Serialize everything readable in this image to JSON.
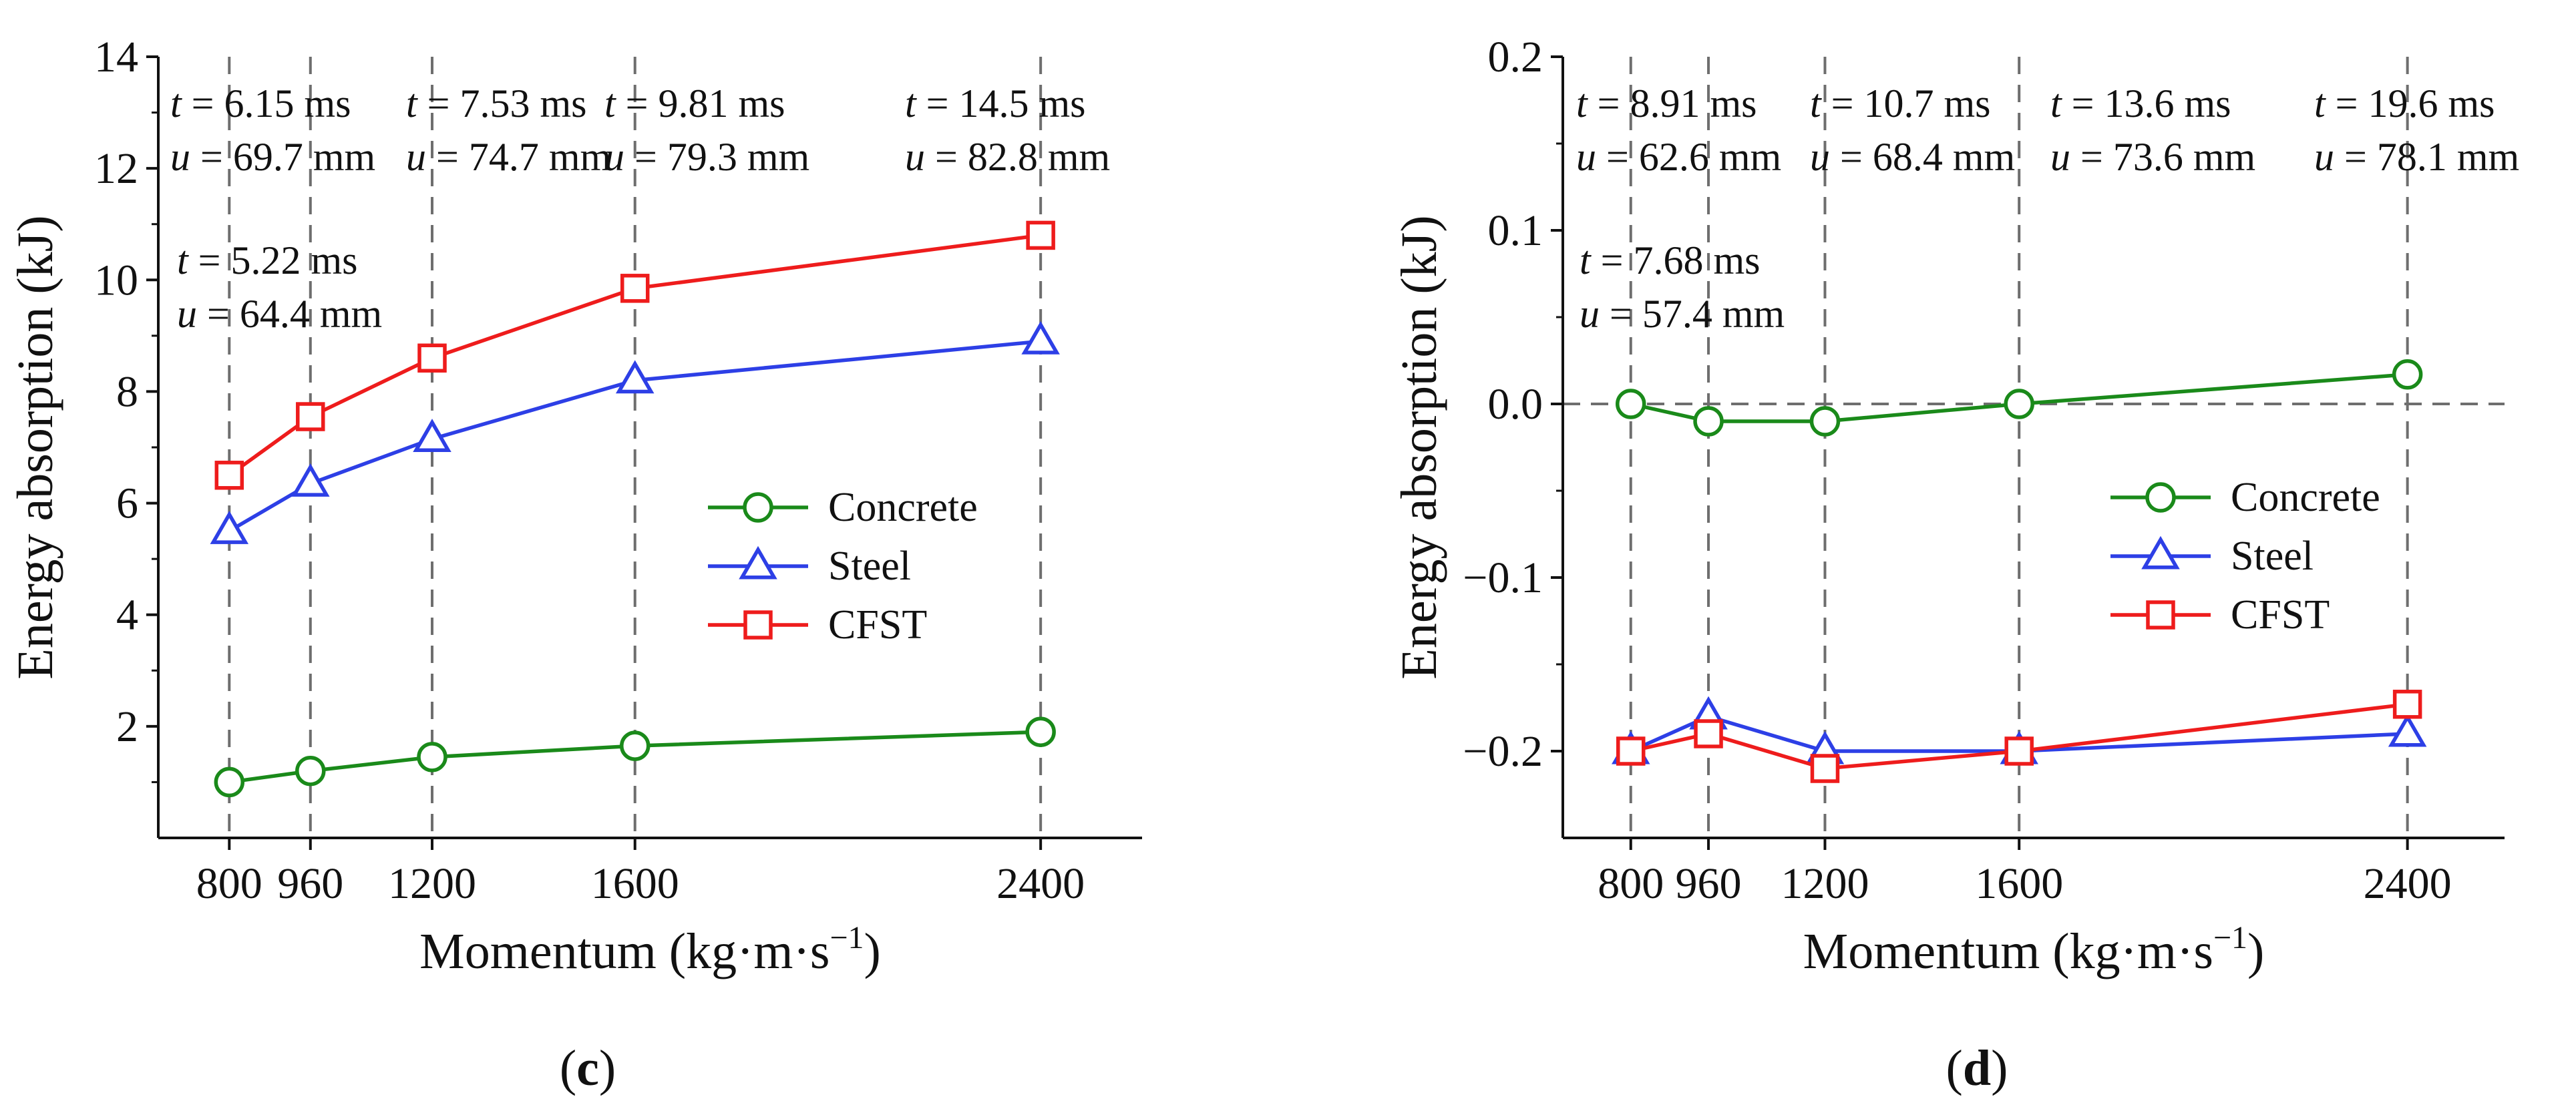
{
  "chart_data": [
    {
      "id": "c",
      "type": "line",
      "caption": "c",
      "xlabel": "Momentum (kg·m·s",
      "xlabel_sup": "−1",
      "xlabel_end": ")",
      "ylabel": "Energy absorption (kJ)",
      "x": [
        800,
        960,
        1200,
        1600,
        2400
      ],
      "xlim": [
        660,
        2600
      ],
      "xticks": [
        800,
        960,
        1200,
        1600,
        2400
      ],
      "ylim": [
        0,
        14
      ],
      "yticks": [
        2,
        4,
        6,
        8,
        10,
        12,
        14
      ],
      "ytick_labels": [
        "2",
        "4",
        "6",
        "8",
        "10",
        "12",
        "14"
      ],
      "zero_line": false,
      "series": [
        {
          "name": "Concrete",
          "marker": "circle",
          "color": "#1a8a1a",
          "values": [
            1.0,
            1.2,
            1.45,
            1.65,
            1.9
          ]
        },
        {
          "name": "Steel",
          "marker": "triangle",
          "color": "#2d3fe6",
          "values": [
            5.5,
            6.35,
            7.15,
            8.2,
            8.9
          ]
        },
        {
          "name": "CFST",
          "marker": "square",
          "color": "#ee1c1c",
          "values": [
            6.5,
            7.55,
            8.6,
            9.85,
            10.8
          ]
        }
      ],
      "annotations": [
        {
          "t": "t = 5.22 ms",
          "u": "u = 64.4 mm"
        },
        {
          "t": "t = 6.15 ms",
          "u": "u = 69.7 mm"
        },
        {
          "t": "t = 7.53 ms",
          "u": "u = 74.7 mm"
        },
        {
          "t": "t = 9.81 ms",
          "u": "u = 79.3 mm"
        },
        {
          "t": "t = 14.5 ms",
          "u": "u = 82.8 mm"
        }
      ]
    },
    {
      "id": "d",
      "type": "line",
      "caption": "d",
      "xlabel": "Momentum (kg·m·s",
      "xlabel_sup": "−1",
      "xlabel_end": ")",
      "ylabel": "Energy absorption (kJ)",
      "x": [
        800,
        960,
        1200,
        1600,
        2400
      ],
      "xlim": [
        660,
        2600
      ],
      "xticks": [
        800,
        960,
        1200,
        1600,
        2400
      ],
      "ylim": [
        -0.25,
        0.2
      ],
      "yticks": [
        -0.2,
        -0.1,
        0.0,
        0.1,
        0.2
      ],
      "ytick_labels": [
        "−0.2",
        "−0.1",
        "0.0",
        "0.1",
        "0.2"
      ],
      "zero_line": true,
      "series": [
        {
          "name": "Concrete",
          "marker": "circle",
          "color": "#1a8a1a",
          "values": [
            0.0,
            -0.01,
            -0.01,
            0.0,
            0.017
          ]
        },
        {
          "name": "Steel",
          "marker": "triangle",
          "color": "#2d3fe6",
          "values": [
            -0.2,
            -0.18,
            -0.2,
            -0.2,
            -0.19
          ]
        },
        {
          "name": "CFST",
          "marker": "square",
          "color": "#ee1c1c",
          "values": [
            -0.2,
            -0.19,
            -0.21,
            -0.2,
            -0.173
          ]
        }
      ],
      "annotations": [
        {
          "t": "t = 7.68 ms",
          "u": "u = 57.4 mm"
        },
        {
          "t": "t = 8.91 ms",
          "u": "u = 62.6 mm"
        },
        {
          "t": "t = 10.7 ms",
          "u": "u = 68.4 mm"
        },
        {
          "t": "t = 13.6 ms",
          "u": "u = 73.6 mm"
        },
        {
          "t": "t = 19.6 ms",
          "u": "u = 78.1 mm"
        }
      ]
    }
  ]
}
